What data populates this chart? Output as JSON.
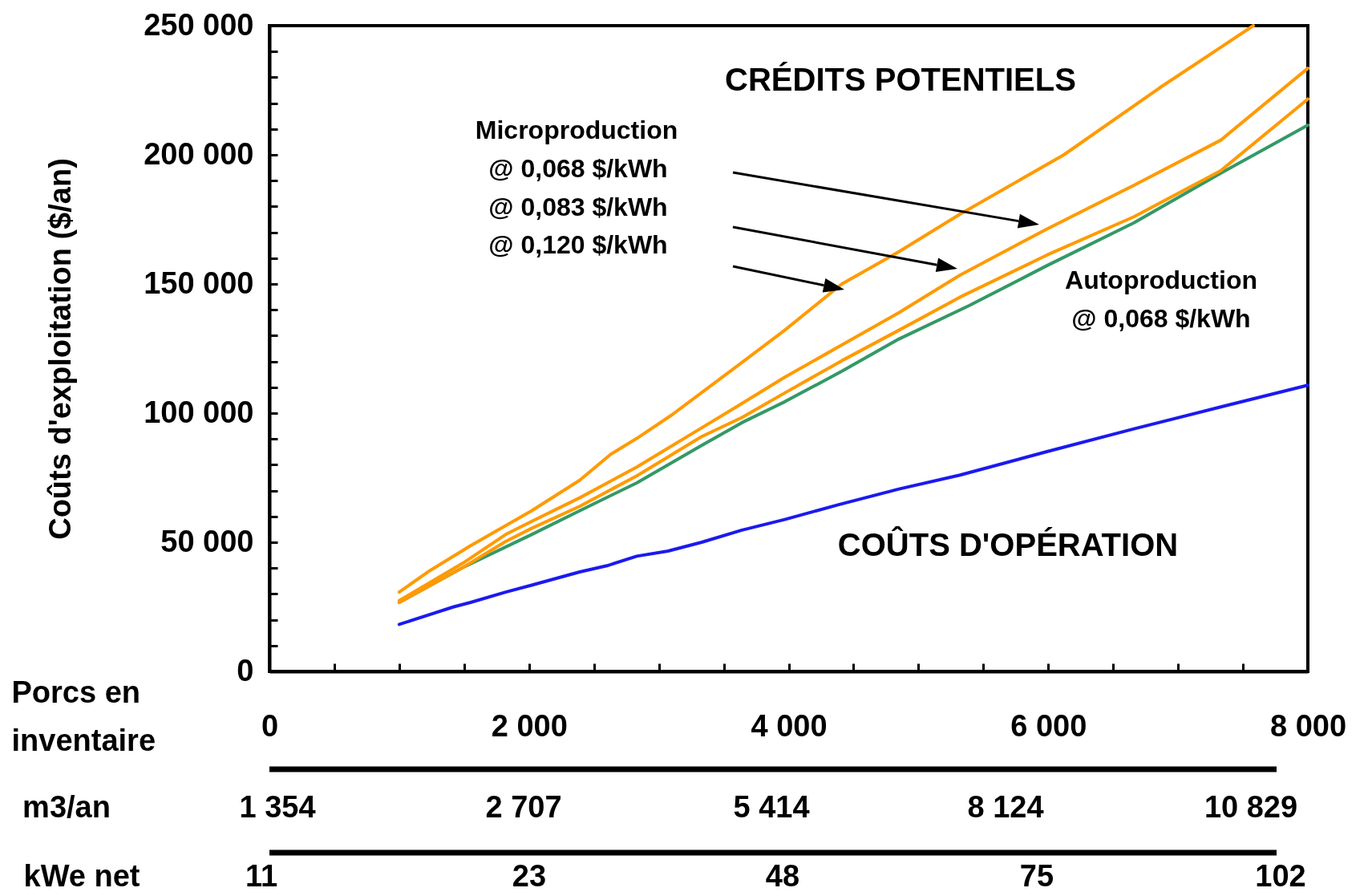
{
  "chart_data": {
    "type": "line",
    "xlabel": "Porcs en inventaire",
    "ylabel": "Coûts d'exploitation ($/an)",
    "annotations": [
      "CRÉDITS POTENTIELS",
      "Microproduction",
      "@ 0,068 $/kWh",
      "@ 0,083 $/kWh",
      "@ 0,120 $/kWh",
      "Autoproduction",
      "@ 0,068 $/kWh",
      "COÛTS D'OPÉRATION",
      "m3/an",
      "1 354",
      "2 707",
      "5 414",
      "8 124",
      "10 829",
      "kWe net",
      "11",
      "23",
      "48",
      "75",
      "102"
    ],
    "series": [
      {
        "color": "#1a1aef",
        "x": [
          1000,
          1420,
          1550,
          1820,
          2020,
          2390,
          2600,
          2830,
          3070,
          3330,
          3640,
          3970,
          4380,
          4850,
          5320,
          5990,
          6660,
          7330,
          8000
        ],
        "values": [
          18200,
          25000,
          26700,
          30700,
          33400,
          38500,
          40900,
          44600,
          46600,
          50000,
          54700,
          58800,
          64500,
          70600,
          76000,
          85100,
          93900,
          102400,
          110800
        ]
      },
      {
        "color": "#339966",
        "x": [
          1000,
          1490,
          2020,
          2390,
          2830,
          3330,
          3640,
          3970,
          4410,
          4850,
          5390,
          5990,
          6660,
          7330,
          8000
        ],
        "values": [
          26700,
          40200,
          53000,
          62200,
          73000,
          87500,
          96300,
          104400,
          116200,
          128700,
          141600,
          157100,
          173700,
          192900,
          211500
        ]
      },
      {
        "color": "#ff9a00",
        "x": [
          1000,
          1490,
          1820,
          2020,
          2390,
          2830,
          3330,
          3640,
          3970,
          4410,
          4850,
          5320,
          5990,
          6660,
          7330,
          8000
        ],
        "values": [
          26700,
          40200,
          50300,
          55400,
          63900,
          75700,
          90900,
          98300,
          107800,
          120300,
          132100,
          144900,
          161200,
          176000,
          193900,
          221600
        ]
      },
      {
        "color": "#ff9a00",
        "x": [
          1000,
          1490,
          1820,
          2020,
          2390,
          2830,
          3330,
          3640,
          3970,
          4410,
          4850,
          5320,
          5990,
          6660,
          7330,
          8000
        ],
        "values": [
          27400,
          41900,
          53000,
          58100,
          67200,
          79100,
          94300,
          103700,
          113900,
          126400,
          138900,
          153400,
          171300,
          188200,
          205700,
          233500
        ]
      },
      {
        "color": "#ff9a00",
        "x": [
          1000,
          1220,
          1550,
          2020,
          2390,
          2630,
          2830,
          3100,
          3640,
          3970,
          4410,
          4850,
          5320,
          6120,
          6860,
          7580
        ],
        "values": [
          30700,
          38500,
          48700,
          62200,
          74000,
          84100,
          90200,
          99300,
          119600,
          132100,
          150000,
          162500,
          177000,
          200000,
          226000,
          250000
        ]
      }
    ],
    "xlim": [
      0,
      8000
    ],
    "xticks": [
      0,
      {
        "value": 500,
        "label": null
      },
      {
        "value": 1000,
        "label": null
      },
      {
        "value": 1500,
        "label": null
      },
      {
        "value": 2000,
        "label": "2 000"
      },
      {
        "value": 2500,
        "label": null
      },
      {
        "value": 3000,
        "label": null
      },
      {
        "value": 3500,
        "label": null
      },
      {
        "value": 4000,
        "label": "4 000"
      },
      {
        "value": 4500,
        "label": null
      },
      {
        "value": 5000,
        "label": null
      },
      {
        "value": 5500,
        "label": null
      },
      {
        "value": 6000,
        "label": "6 000"
      },
      {
        "value": 6500,
        "label": null
      },
      {
        "value": 7000,
        "label": null
      },
      {
        "value": 7500,
        "label": null
      },
      {
        "value": 8000,
        "label": "8 000"
      }
    ],
    "ylim": [
      0,
      250000
    ],
    "yticks": [
      0,
      {
        "value": 10000,
        "label": null
      },
      {
        "value": 20000,
        "label": null
      },
      {
        "value": 30000,
        "label": null
      },
      {
        "value": 40000,
        "label": null
      },
      {
        "value": 50000,
        "label": "50 000"
      },
      {
        "value": 60000,
        "label": null
      },
      {
        "value": 70000,
        "label": null
      },
      {
        "value": 80000,
        "label": null
      },
      {
        "value": 90000,
        "label": null
      },
      {
        "value": 100000,
        "label": "100 000"
      },
      {
        "value": 110000,
        "label": null
      },
      {
        "value": 120000,
        "label": null
      },
      {
        "value": 130000,
        "label": null
      },
      {
        "value": 140000,
        "label": null
      },
      {
        "value": 150000,
        "label": "150 000"
      },
      {
        "value": 160000,
        "label": null
      },
      {
        "value": 170000,
        "label": null
      },
      {
        "value": 180000,
        "label": null
      },
      {
        "value": 190000,
        "label": null
      },
      {
        "value": 200000,
        "label": "200 000"
      },
      {
        "value": 210000,
        "label": null
      },
      {
        "value": 220000,
        "label": null
      },
      {
        "value": 230000,
        "label": null
      },
      {
        "value": 240000,
        "label": null
      },
      {
        "value": 250000,
        "label": "250 000"
      }
    ],
    "grid": false,
    "legend": false,
    "marker": "none",
    "line_style": "solid"
  }
}
